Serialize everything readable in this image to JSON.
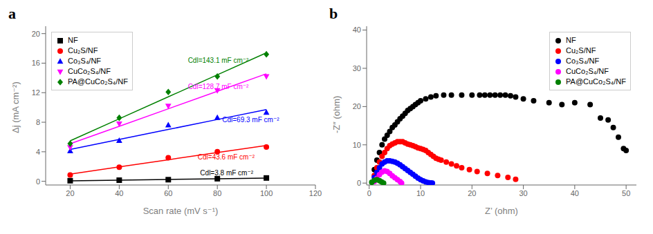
{
  "chart_data": [
    {
      "type": "scatter",
      "title": "a",
      "x_label": "Scan rate (mV s⁻¹)",
      "y_label": "Δj (mA cm⁻²)",
      "xlim": [
        10,
        120
      ],
      "ylim": [
        -0.5,
        21
      ],
      "xticks": [
        20,
        40,
        60,
        80,
        100,
        120
      ],
      "yticks": [
        0,
        4,
        8,
        12,
        16,
        20
      ],
      "legend": "upper left",
      "x": [
        20,
        40,
        60,
        80,
        100
      ],
      "series": [
        {
          "name": "NF",
          "color": "#000000",
          "marker": "square",
          "values": [
            0.08,
            0.15,
            0.22,
            0.35,
            0.45
          ],
          "fit_values": [
            0.062,
            0.156,
            0.25,
            0.344,
            0.438
          ]
        },
        {
          "name": "Cu₂S/NF",
          "color": "#ff0000",
          "marker": "circle",
          "values": [
            0.85,
            1.9,
            3.2,
            4.0,
            4.65
          ],
          "fit_values": [
            0.98,
            1.95,
            2.92,
            3.89,
            4.86
          ]
        },
        {
          "name": "Co₃S₄/NF",
          "color": "#0000ff",
          "marker": "triangle-up",
          "values": [
            4.1,
            5.5,
            7.6,
            8.6,
            9.3
          ],
          "fit_values": [
            4.32,
            5.67,
            7.02,
            8.37,
            9.72
          ]
        },
        {
          "name": "CuCo₂S₄/NF",
          "color": "#ff00ff",
          "marker": "triangle-down",
          "values": [
            4.6,
            7.8,
            10.2,
            12.3,
            14.2
          ],
          "fit_values": [
            5.08,
            7.45,
            9.82,
            12.19,
            14.56
          ]
        },
        {
          "name": "PA@CuCo₂S₄/NF",
          "color": "#008000",
          "marker": "diamond",
          "values": [
            5.1,
            8.6,
            12.1,
            14.2,
            17.2
          ],
          "fit_values": [
            5.48,
            8.46,
            11.44,
            14.42,
            17.4
          ]
        }
      ],
      "annotations": [
        {
          "text": "Cdl=3.8 mF cm⁻²",
          "x": 73,
          "y": 0.8,
          "color": "#000000"
        },
        {
          "text": "Cdl=43.6 mF cm⁻²",
          "x": 72,
          "y": 3.0,
          "color": "#ff0000"
        },
        {
          "text": "Cdl=69.3 mF cm⁻²",
          "x": 82,
          "y": 8.0,
          "color": "#0000ff"
        },
        {
          "text": "Cdl=128.7 mF cm⁻²",
          "x": 68,
          "y": 12.5,
          "color": "#ff00ff"
        },
        {
          "text": "Cdl=143.1 mF cm⁻²",
          "x": 68,
          "y": 16.0,
          "color": "#008000"
        }
      ]
    },
    {
      "type": "scatter",
      "title": "b",
      "x_label": "Z’ (ohm)",
      "y_label": "-Z″ (ohm)",
      "xlim": [
        -0.5,
        52
      ],
      "ylim": [
        -0.5,
        41
      ],
      "xticks": [
        0,
        10,
        20,
        30,
        40,
        50
      ],
      "yticks": [
        0,
        10,
        20,
        30,
        40
      ],
      "legend": "upper right",
      "marker": "circle",
      "series": [
        {
          "name": "NF",
          "color": "#000000",
          "x": [
            1.0,
            1.5,
            2.0,
            2.5,
            3.0,
            3.5,
            4.0,
            4.5,
            5.0,
            5.5,
            6.0,
            6.5,
            7.0,
            7.5,
            8.0,
            8.5,
            9.0,
            9.5,
            10.0,
            11.0,
            12.0,
            13.0,
            14.5,
            16.0,
            18.0,
            20.0,
            21.5,
            22.5,
            23.5,
            24.5,
            25.5,
            26.5,
            27.5,
            28.5,
            30.0,
            32.0,
            35.0,
            37.5,
            40.0,
            43.0,
            45.0,
            46.5,
            47.5,
            48.5,
            49.5,
            50.0
          ],
          "values": [
            3.5,
            6.0,
            8.0,
            10.0,
            11.5,
            12.5,
            13.5,
            14.5,
            15.2,
            16.0,
            16.8,
            17.5,
            18.2,
            19.0,
            19.5,
            20.0,
            20.5,
            21.0,
            21.5,
            22.0,
            22.5,
            22.8,
            23.0,
            23.0,
            23.0,
            23.0,
            23.0,
            23.0,
            23.0,
            23.0,
            23.0,
            23.0,
            22.8,
            22.5,
            22.0,
            21.5,
            21.0,
            20.5,
            21.0,
            20.5,
            17.0,
            16.5,
            14.5,
            12.0,
            9.0,
            8.5
          ]
        },
        {
          "name": "Cu₂S/NF",
          "color": "#ff0000",
          "x": [
            1.0,
            1.5,
            2.0,
            2.5,
            3.0,
            3.5,
            4.0,
            4.5,
            5.0,
            5.5,
            6.0,
            6.5,
            7.0,
            7.5,
            8.0,
            8.5,
            9.0,
            9.5,
            10.0,
            10.5,
            11.0,
            11.5,
            12.0,
            12.5,
            13.0,
            13.5,
            14.0,
            15.0,
            16.0,
            17.0,
            18.0,
            19.5,
            21.0,
            23.0,
            25.0,
            27.0,
            28.5
          ],
          "values": [
            2.0,
            4.0,
            5.5,
            7.0,
            8.0,
            9.0,
            9.8,
            10.2,
            10.5,
            10.8,
            10.8,
            10.8,
            10.5,
            10.2,
            10.0,
            9.8,
            9.5,
            9.2,
            9.0,
            8.8,
            8.5,
            8.0,
            7.5,
            7.0,
            6.5,
            6.2,
            6.0,
            5.5,
            5.0,
            4.5,
            4.0,
            3.5,
            3.0,
            2.5,
            2.0,
            1.5,
            1.0
          ]
        },
        {
          "name": "Co₃S₄/NF",
          "color": "#0000ff",
          "x": [
            1.0,
            1.5,
            2.0,
            2.5,
            3.0,
            3.5,
            4.0,
            4.5,
            5.0,
            5.5,
            6.0,
            6.5,
            7.0,
            7.5,
            8.0,
            8.5,
            9.0,
            9.5,
            10.0,
            10.5,
            11.0,
            11.5,
            12.0,
            12.3
          ],
          "values": [
            1.5,
            2.8,
            4.0,
            5.0,
            5.5,
            5.8,
            5.8,
            5.7,
            5.5,
            5.2,
            4.8,
            4.3,
            3.8,
            3.3,
            2.8,
            2.3,
            1.8,
            1.3,
            0.9,
            0.6,
            0.3,
            0.15,
            0.05,
            0.0
          ]
        },
        {
          "name": "CuCo₂S₄/NF",
          "color": "#ff00ff",
          "x": [
            1.0,
            1.5,
            2.0,
            2.5,
            3.0,
            3.5,
            4.0,
            4.5,
            5.0,
            5.5,
            6.0,
            6.3
          ],
          "values": [
            0.4,
            1.2,
            2.2,
            2.9,
            3.2,
            3.0,
            2.5,
            1.9,
            1.4,
            0.9,
            0.4,
            0.0
          ]
        },
        {
          "name": "PA@CuCo₂S₄/NF",
          "color": "#008000",
          "x": [
            0.5,
            1.0,
            1.5,
            2.0,
            2.4,
            2.8
          ],
          "values": [
            0.2,
            0.7,
            0.9,
            0.65,
            0.3,
            0.0
          ]
        }
      ]
    }
  ]
}
